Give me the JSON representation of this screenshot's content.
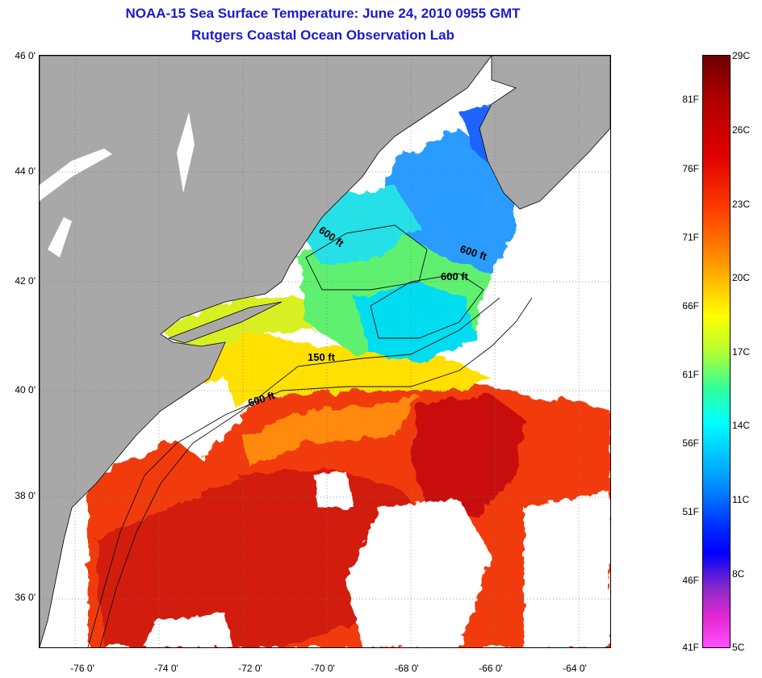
{
  "header": {
    "title": "NOAA-15 Sea Surface Temperature:  June 24, 2010 0955 GMT",
    "subtitle": "Rutgers Coastal Ocean Observation Lab"
  },
  "map": {
    "lat_range": [
      35,
      46
    ],
    "lon_range": [
      -77,
      -63
    ],
    "lat_ticks": [
      "46 0'",
      "44 0'",
      "42 0'",
      "40 0'",
      "38 0'",
      "36 0'"
    ],
    "lon_ticks": [
      "-76 0'",
      "-74 0'",
      "-72 0'",
      "-70 0'",
      "-68 0'",
      "-66 0'",
      "-64 0'"
    ],
    "contour_labels": [
      "600 ft",
      "600 ft",
      "600 ft",
      "150 ft",
      "600 ft"
    ],
    "colors": {
      "land": "#a8a8a8",
      "cloud": "#ffffff"
    }
  },
  "colorbar": {
    "celsius_labels": [
      "29C",
      "26C",
      "23C",
      "20C",
      "17C",
      "14C",
      "11C",
      "8C",
      "5C"
    ],
    "fahrenheit_labels": [
      "81F",
      "76F",
      "71F",
      "66F",
      "61F",
      "56F",
      "51F",
      "46F",
      "41F"
    ]
  }
}
